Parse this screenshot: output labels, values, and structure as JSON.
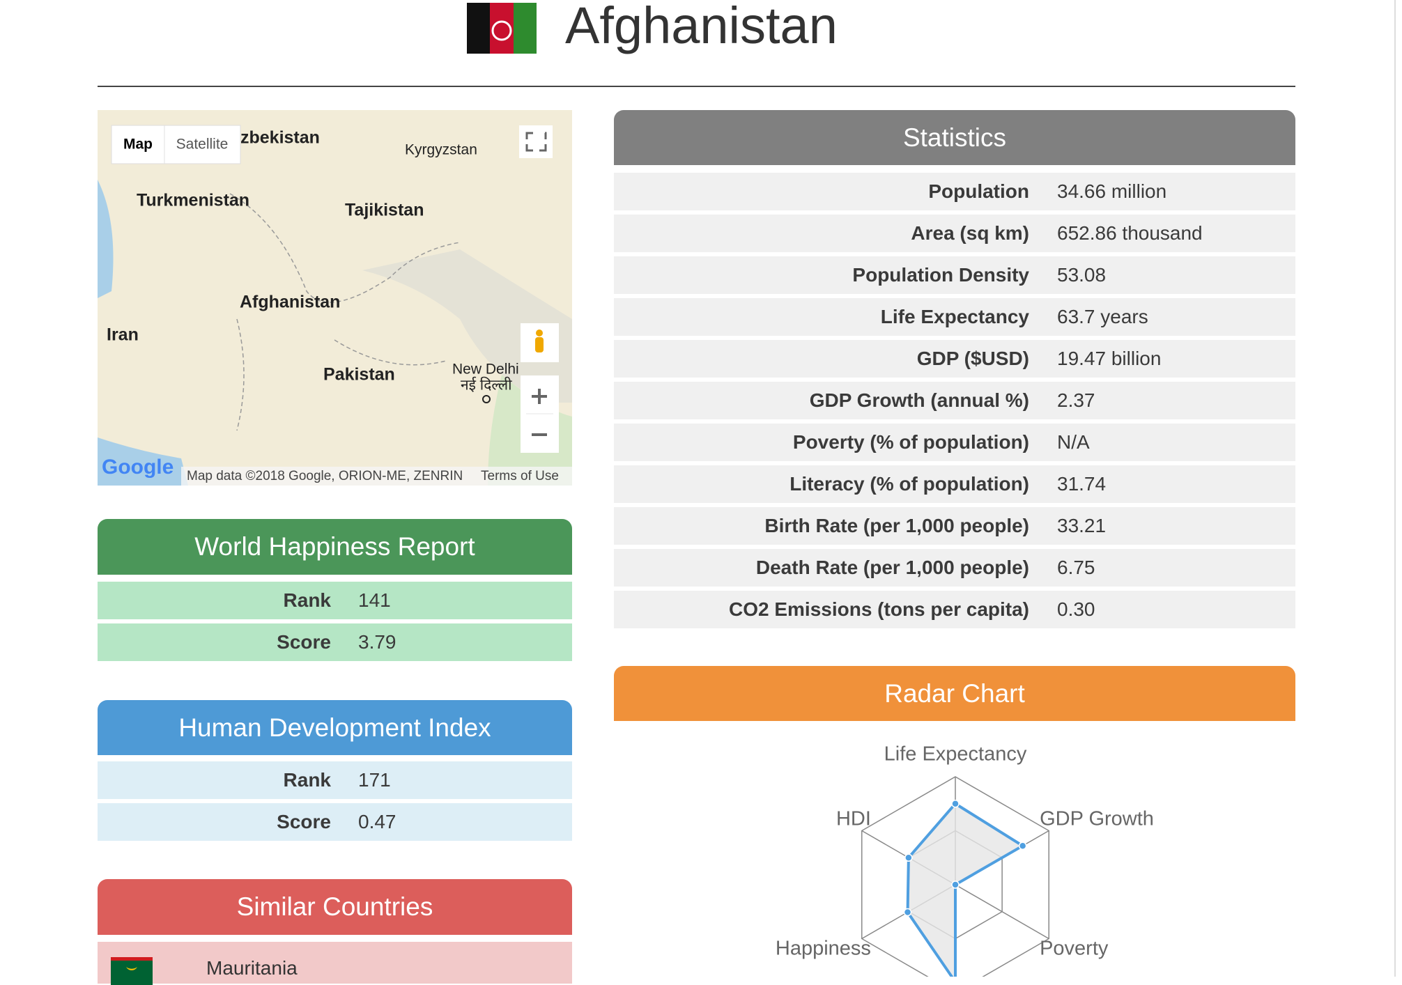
{
  "header": {
    "title": "Afghanistan"
  },
  "map": {
    "buttons": [
      "Map",
      "Satellite"
    ],
    "labels": [
      "zbekistan",
      "Kyrgyzstan",
      "Turkmenistan",
      "Tajikistan",
      "Afghanistan",
      "Iran",
      "Pakistan",
      "New Delhi",
      "नई दिल्ली"
    ],
    "attribution": "Map data ©2018 Google, ORION-ME, ZENRIN",
    "terms": "Terms of Use",
    "logo": "Google"
  },
  "statistics": {
    "title": "Statistics",
    "rows": [
      [
        "Population",
        "34.66 million"
      ],
      [
        "Area (sq km)",
        "652.86 thousand"
      ],
      [
        "Population Density",
        "53.08"
      ],
      [
        "Life Expectancy",
        "63.7 years"
      ],
      [
        "GDP ($USD)",
        "19.47 billion"
      ],
      [
        "GDP Growth (annual %)",
        "2.37"
      ],
      [
        "Poverty (% of population)",
        "N/A"
      ],
      [
        "Literacy (% of population)",
        "31.74"
      ],
      [
        "Birth Rate (per 1,000 people)",
        "33.21"
      ],
      [
        "Death Rate (per 1,000 people)",
        "6.75"
      ],
      [
        "CO2 Emissions (tons per capita)",
        "0.30"
      ]
    ]
  },
  "happiness": {
    "title": "World Happiness Report",
    "rows": [
      [
        "Rank",
        "141"
      ],
      [
        "Score",
        "3.79"
      ]
    ]
  },
  "hdi": {
    "title": "Human Development Index",
    "rows": [
      [
        "Rank",
        "171"
      ],
      [
        "Score",
        "0.47"
      ]
    ]
  },
  "similar": {
    "title": "Similar Countries",
    "countries": [
      "Mauritania"
    ]
  },
  "chart_data": {
    "type": "radar",
    "title": "Radar Chart",
    "categories": [
      "Life Expectancy",
      "GDP Growth",
      "Poverty",
      null,
      "Happiness",
      "HDI"
    ],
    "values": [
      0.75,
      0.72,
      0,
      0.9,
      0.51,
      0.5
    ],
    "rlim": [
      0,
      1
    ],
    "rticks": [
      0.5,
      1
    ],
    "color": "#4f9fe0",
    "fill": "#e6e6e6"
  }
}
